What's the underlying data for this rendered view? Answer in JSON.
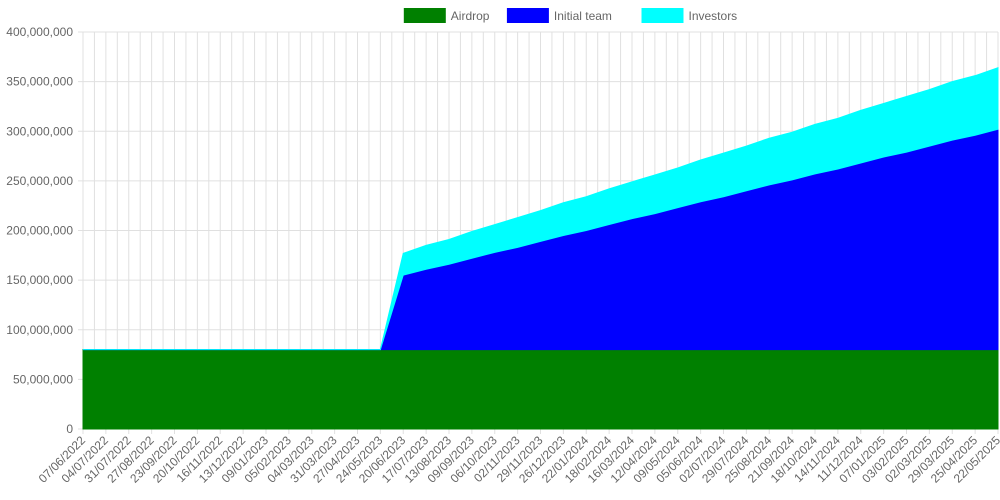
{
  "chart_data": {
    "type": "area",
    "stacked": true,
    "categories": [
      "07/06/2022",
      "04/07/2022",
      "31/07/2022",
      "27/08/2022",
      "23/09/2022",
      "20/10/2022",
      "16/11/2022",
      "13/12/2022",
      "09/01/2023",
      "05/02/2023",
      "04/03/2023",
      "31/03/2023",
      "27/04/2023",
      "24/05/2023",
      "20/06/2023",
      "17/07/2023",
      "13/08/2023",
      "09/09/2023",
      "06/10/2023",
      "02/11/2023",
      "29/11/2023",
      "26/12/2023",
      "22/01/2024",
      "18/02/2024",
      "16/03/2024",
      "12/04/2024",
      "09/05/2024",
      "05/06/2024",
      "02/07/2024",
      "29/07/2024",
      "25/08/2024",
      "21/09/2024",
      "18/10/2024",
      "14/11/2024",
      "11/12/2024",
      "07/01/2025",
      "03/02/2025",
      "02/03/2025",
      "29/03/2025",
      "25/04/2025",
      "22/05/2025"
    ],
    "series": [
      {
        "name": "Airdrop",
        "color": "#008000",
        "values": [
          80000000,
          80000000,
          80000000,
          80000000,
          80000000,
          80000000,
          80000000,
          80000000,
          80000000,
          80000000,
          80000000,
          80000000,
          80000000,
          80000000,
          80000000,
          80000000,
          80000000,
          80000000,
          80000000,
          80000000,
          80000000,
          80000000,
          80000000,
          80000000,
          80000000,
          80000000,
          80000000,
          80000000,
          80000000,
          80000000,
          80000000,
          80000000,
          80000000,
          80000000,
          80000000,
          80000000,
          80000000,
          80000000,
          80000000,
          80000000,
          80000000
        ]
      },
      {
        "name": "Initial team",
        "color": "#0000ff",
        "values": [
          0,
          0,
          0,
          0,
          0,
          0,
          0,
          0,
          0,
          0,
          0,
          0,
          0,
          0,
          75000000,
          81000000,
          86000000,
          92000000,
          98000000,
          103000000,
          109000000,
          115000000,
          120000000,
          126000000,
          132000000,
          137000000,
          143000000,
          149000000,
          154000000,
          160000000,
          166000000,
          171000000,
          177000000,
          182000000,
          188000000,
          194000000,
          199000000,
          205000000,
          211000000,
          216000000,
          222000000
        ]
      },
      {
        "name": "Investors",
        "color": "#00ffff",
        "values": [
          0,
          0,
          0,
          0,
          0,
          0,
          0,
          0,
          0,
          0,
          0,
          0,
          0,
          0,
          22000000,
          24000000,
          25000000,
          27000000,
          28000000,
          30000000,
          31000000,
          33000000,
          34000000,
          36000000,
          37000000,
          39000000,
          40000000,
          42000000,
          44000000,
          45000000,
          47000000,
          48000000,
          50000000,
          51000000,
          53000000,
          54000000,
          56000000,
          57000000,
          59000000,
          60000000,
          62000000
        ]
      }
    ],
    "ylim": [
      0,
      400000000
    ],
    "yticks": [
      0,
      {
        "value": 50000000,
        "label": "50,000,000"
      },
      {
        "value": 100000000,
        "label": "100,000,000"
      },
      {
        "value": 150000000,
        "label": "150,000,000"
      },
      {
        "value": 200000000,
        "label": "200,000,000"
      },
      {
        "value": 250000000,
        "label": "250,000,000"
      },
      {
        "value": 300000000,
        "label": "300,000,000"
      },
      {
        "value": 350000000,
        "label": "350,000,000"
      },
      {
        "value": 400000000,
        "label": "400,000,000"
      }
    ],
    "grid": true,
    "legend": "top"
  }
}
